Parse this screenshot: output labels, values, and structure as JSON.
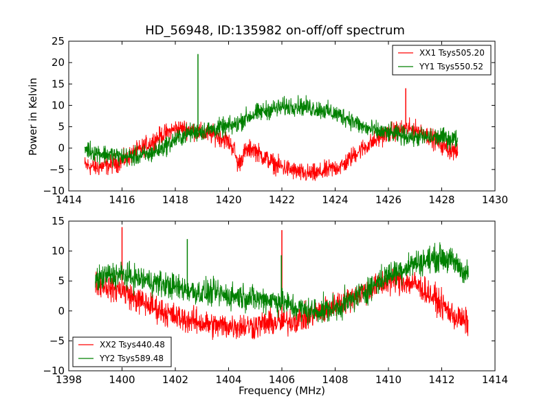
{
  "chart_data": [
    {
      "type": "line",
      "title": "HD_56948, ID:135982 on-off/off spectrum",
      "xlabel": "",
      "ylabel": "Power in Kelvin",
      "xlim": [
        1414,
        1430
      ],
      "ylim": [
        -10,
        25
      ],
      "xticks": [
        "1414",
        "1416",
        "1418",
        "1420",
        "1422",
        "1424",
        "1426",
        "1428",
        "1430"
      ],
      "yticks": [
        "−10",
        "−5",
        "0",
        "5",
        "10",
        "15",
        "20",
        "25"
      ],
      "legend": "top-right",
      "series": [
        {
          "name": "XX1 Tsys505.20",
          "color": "#ff0000",
          "x": [
            1414.6,
            1415.0,
            1415.5,
            1416.0,
            1416.5,
            1417.0,
            1417.5,
            1418.0,
            1418.5,
            1419.0,
            1419.5,
            1419.9,
            1420.2,
            1420.35,
            1420.6,
            1420.9,
            1421.3,
            1421.8,
            1422.3,
            1422.8,
            1423.3,
            1423.8,
            1424.3,
            1424.8,
            1425.3,
            1425.8,
            1426.2,
            1426.7,
            1427.2,
            1427.7,
            1428.2,
            1428.6
          ],
          "values": [
            -4,
            -4.5,
            -4,
            -3,
            -1,
            1,
            3,
            4.5,
            4.5,
            3.5,
            3,
            2,
            0,
            -4,
            -1,
            0,
            -2,
            -4,
            -5,
            -6,
            -6,
            -5,
            -4,
            -1,
            1,
            3,
            4,
            4.5,
            4,
            2,
            0,
            -1
          ],
          "spikes": [
            {
              "x": 1426.65,
              "value": 14
            }
          ]
        },
        {
          "name": "YY1 Tsys550.52",
          "color": "#008000",
          "x": [
            1414.6,
            1415.0,
            1415.5,
            1416.0,
            1416.5,
            1417.0,
            1417.5,
            1418.0,
            1418.5,
            1419.0,
            1419.5,
            1420.0,
            1420.3,
            1420.6,
            1421.0,
            1421.5,
            1422.0,
            1422.5,
            1423.0,
            1423.5,
            1424.0,
            1424.5,
            1425.0,
            1425.5,
            1426.0,
            1426.5,
            1427.0,
            1427.5,
            1428.0,
            1428.6
          ],
          "values": [
            0,
            -1,
            -1.5,
            -2,
            -2,
            -1.5,
            0,
            2,
            3.5,
            4,
            4.5,
            5,
            5.5,
            7,
            8,
            9,
            9.5,
            10,
            9.5,
            9,
            8,
            7,
            5,
            4,
            3.5,
            3,
            2.5,
            2.5,
            2.5,
            2
          ],
          "spikes": [
            {
              "x": 1418.85,
              "value": 22
            }
          ]
        }
      ]
    },
    {
      "type": "line",
      "title": "",
      "xlabel": "Frequency (MHz)",
      "ylabel": "",
      "xlim": [
        1398,
        1414
      ],
      "ylim": [
        -10,
        15
      ],
      "xticks": [
        "1398",
        "1400",
        "1402",
        "1404",
        "1406",
        "1408",
        "1410",
        "1412",
        "1414"
      ],
      "yticks": [
        "−10",
        "−5",
        "0",
        "5",
        "10",
        "15"
      ],
      "legend": "bottom-left",
      "series": [
        {
          "name": "XX2 Tsys440.48",
          "color": "#ff0000",
          "x": [
            1399.0,
            1399.5,
            1400.0,
            1400.5,
            1401.0,
            1401.5,
            1402.0,
            1402.5,
            1403.0,
            1403.5,
            1404.0,
            1404.5,
            1405.0,
            1405.5,
            1406.0,
            1406.5,
            1407.0,
            1407.5,
            1408.0,
            1408.5,
            1409.0,
            1409.5,
            1410.0,
            1410.5,
            1411.0,
            1411.5,
            1412.0,
            1412.5,
            1413.0
          ],
          "values": [
            5,
            4,
            3.5,
            2,
            1,
            0,
            -1,
            -1.5,
            -2,
            -2.5,
            -2.5,
            -2.5,
            -2.5,
            -2,
            -2,
            -1.5,
            -1,
            0,
            1,
            2,
            3,
            4,
            5,
            5,
            4.5,
            3,
            1,
            -1,
            -2
          ],
          "spikes": [
            {
              "x": 1400.0,
              "value": 14
            },
            {
              "x": 1406.0,
              "value": 13.5
            }
          ]
        },
        {
          "name": "YY2 Tsys589.48",
          "color": "#008000",
          "x": [
            1399.0,
            1399.5,
            1400.0,
            1400.5,
            1401.0,
            1401.5,
            1402.0,
            1402.5,
            1403.0,
            1403.5,
            1404.0,
            1404.5,
            1405.0,
            1405.5,
            1406.0,
            1406.5,
            1407.0,
            1407.5,
            1408.0,
            1408.5,
            1409.0,
            1409.5,
            1410.0,
            1410.5,
            1411.0,
            1411.5,
            1412.0,
            1412.5,
            1413.0
          ],
          "values": [
            5,
            6,
            6,
            5.5,
            5,
            4.5,
            4,
            3.5,
            3,
            3,
            2.5,
            2.5,
            2,
            2,
            1.5,
            0.5,
            0,
            0,
            0.5,
            1.5,
            3,
            4.5,
            6,
            7,
            8,
            8.5,
            9,
            8,
            6
          ],
          "spikes": [
            {
              "x": 1402.45,
              "value": 12
            },
            {
              "x": 1405.98,
              "value": 9.3
            }
          ]
        }
      ]
    }
  ]
}
